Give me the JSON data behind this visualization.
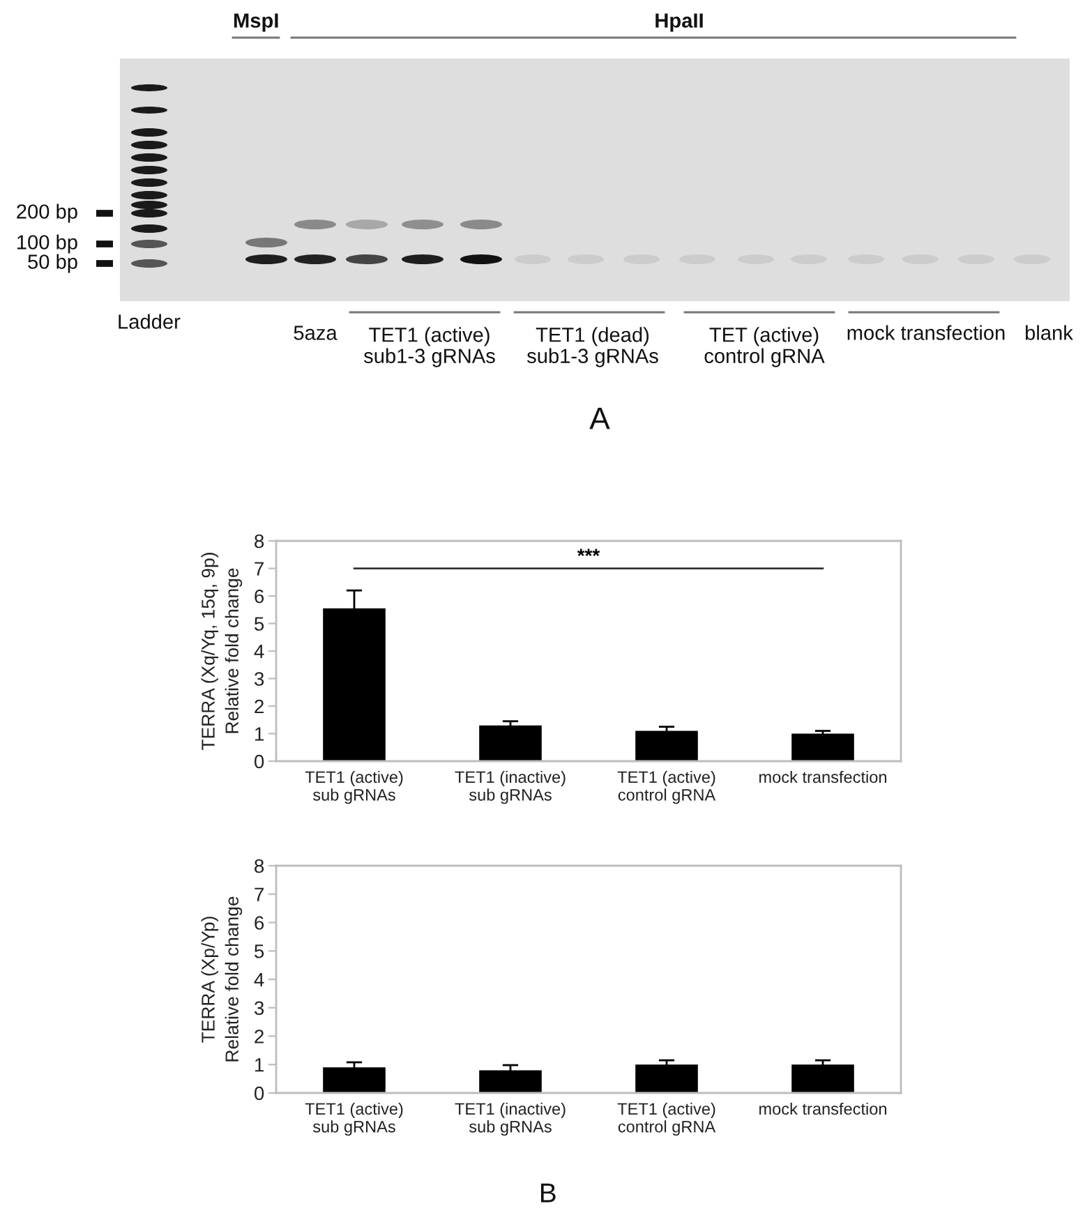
{
  "chart_data": [
    {
      "type": "other",
      "annotations": [
        "MspI",
        "HpaII",
        "200 bp",
        "100 bp",
        "50 bp",
        "Ladder",
        "5aza",
        "TET1 (active)\nsub1-3 gRNAs",
        "TET1 (dead)\nsub1-3 gRNAs",
        "TET (active)\ncontrol gRNA",
        "mock transfection",
        "blank",
        "A"
      ]
    },
    {
      "type": "bar",
      "categories": [
        "TET1 (active)\nsub gRNAs",
        "TET1 (inactive)\nsub gRNAs",
        "TET1 (active)\ncontrol gRNA",
        "mock transfection"
      ],
      "values": [
        5.55,
        1.3,
        1.1,
        1.0
      ],
      "errors": [
        0.65,
        0.15,
        0.15,
        0.1
      ],
      "color": "#000000",
      "ylabel": "TERRA (Xq/Yq, 15q, 9p)\nRelative fold change",
      "ylim": [
        0,
        8
      ],
      "yticks": [
        0,
        1,
        2,
        3,
        4,
        5,
        6,
        7,
        8
      ],
      "annotations": [
        "***"
      ]
    },
    {
      "type": "bar",
      "categories": [
        "TET1 (active)\nsub gRNAs",
        "TET1 (inactive)\nsub gRNAs",
        "TET1 (active)\ncontrol gRNA",
        "mock transfection"
      ],
      "values": [
        0.9,
        0.8,
        1.0,
        1.0
      ],
      "errors": [
        0.18,
        0.18,
        0.15,
        0.15
      ],
      "color": "#000000",
      "ylabel": "TERRA (Xp/Yp)\nRelative fold change",
      "ylim": [
        0,
        8
      ],
      "yticks": [
        0,
        1,
        2,
        3,
        4,
        5,
        6,
        7,
        8
      ],
      "annotations": [
        "B"
      ]
    }
  ]
}
